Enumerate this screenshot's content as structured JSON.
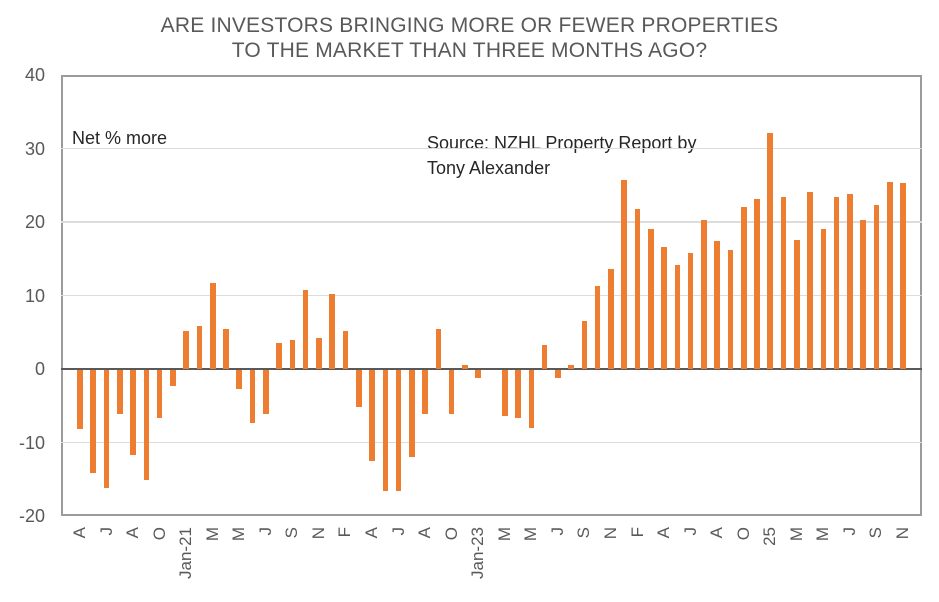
{
  "title": {
    "line1": "ARE INVESTORS BRINGING MORE OR FEWER PROPERTIES",
    "line2": "TO THE MARKET THAN THREE MONTHS AGO?"
  },
  "annotations": {
    "y_unit": "Net % more",
    "source_line1": "Source: NZHL Property Report by",
    "source_line2": "Tony Alexander"
  },
  "colors": {
    "bar": "#ED7D31",
    "grid": "#DCDCDC",
    "plot_border": "#9B9B9B",
    "zero_line": "#595959",
    "axis_text": "#595959",
    "title_text": "#595959",
    "annotation_text": "#262626"
  },
  "chart_data": {
    "type": "bar",
    "title": "ARE INVESTORS BRINGING MORE OR FEWER PROPERTIES TO THE MARKET THAN THREE MONTHS AGO?",
    "ylabel": "Net % more",
    "source": "Source: NZHL Property Report by Tony Alexander",
    "ylim": [
      -20,
      40
    ],
    "yticks": [
      40,
      30,
      20,
      10,
      0,
      -10,
      -20
    ],
    "gridline_values": [
      30,
      20,
      10,
      -10
    ],
    "grid": true,
    "legend": false,
    "x_tick_note": "monthly bars, tick label under every second bar",
    "tick_labels": [
      "A",
      "J",
      "A",
      "O",
      "Jan-21",
      "M",
      "M",
      "J",
      "S",
      "N",
      "F",
      "A",
      "J",
      "A",
      "O",
      "Jan-23",
      "M",
      "M",
      "J",
      "S",
      "N",
      "F",
      "A",
      "J",
      "A",
      "O",
      "25",
      "M",
      "M",
      "J",
      "S",
      "N"
    ],
    "bars": [
      {
        "tick": "A",
        "value": -8
      },
      {
        "tick": "",
        "value": -14
      },
      {
        "tick": "J",
        "value": -16
      },
      {
        "tick": "",
        "value": -5.9
      },
      {
        "tick": "A",
        "value": -11.5
      },
      {
        "tick": "",
        "value": -15
      },
      {
        "tick": "O",
        "value": -6.5
      },
      {
        "tick": "",
        "value": -2.2
      },
      {
        "tick": "Jan-21",
        "value": 5.2
      },
      {
        "tick": "",
        "value": 5.9
      },
      {
        "tick": "M",
        "value": 11.7
      },
      {
        "tick": "",
        "value": 5.4
      },
      {
        "tick": "M",
        "value": -2.6
      },
      {
        "tick": "",
        "value": -7.2
      },
      {
        "tick": "J",
        "value": -5.9
      },
      {
        "tick": "",
        "value": 3.5
      },
      {
        "tick": "S",
        "value": 4
      },
      {
        "tick": "",
        "value": 10.7
      },
      {
        "tick": "N",
        "value": 4.2
      },
      {
        "tick": "",
        "value": 10.2
      },
      {
        "tick": "F",
        "value": 5.2
      },
      {
        "tick": "",
        "value": -5
      },
      {
        "tick": "A",
        "value": -12.4
      },
      {
        "tick": "",
        "value": -16.4
      },
      {
        "tick": "J",
        "value": -16.5
      },
      {
        "tick": "",
        "value": -11.8
      },
      {
        "tick": "A",
        "value": -6
      },
      {
        "tick": "",
        "value": 5.4
      },
      {
        "tick": "O",
        "value": -6
      },
      {
        "tick": "",
        "value": 0.5
      },
      {
        "tick": "Jan-23",
        "value": -1
      },
      {
        "tick": "",
        "value": 0
      },
      {
        "tick": "M",
        "value": -6.2
      },
      {
        "tick": "",
        "value": -6.5
      },
      {
        "tick": "M",
        "value": -7.8
      },
      {
        "tick": "",
        "value": 3.3
      },
      {
        "tick": "J",
        "value": -1
      },
      {
        "tick": "",
        "value": 0.5
      },
      {
        "tick": "S",
        "value": 6.5
      },
      {
        "tick": "",
        "value": 11.3
      },
      {
        "tick": "N",
        "value": 13.6
      },
      {
        "tick": "",
        "value": 25.7
      },
      {
        "tick": "F",
        "value": 21.8
      },
      {
        "tick": "",
        "value": 19
      },
      {
        "tick": "A",
        "value": 16.6
      },
      {
        "tick": "",
        "value": 14.2
      },
      {
        "tick": "J",
        "value": 15.8
      },
      {
        "tick": "",
        "value": 20.3
      },
      {
        "tick": "A",
        "value": 17.4
      },
      {
        "tick": "",
        "value": 16.2
      },
      {
        "tick": "O",
        "value": 22.1
      },
      {
        "tick": "",
        "value": 23.1
      },
      {
        "tick": "25",
        "value": 32.1
      },
      {
        "tick": "",
        "value": 23.4
      },
      {
        "tick": "M",
        "value": 17.6
      },
      {
        "tick": "",
        "value": 24.1
      },
      {
        "tick": "M",
        "value": 19.1
      },
      {
        "tick": "",
        "value": 23.4
      },
      {
        "tick": "J",
        "value": 23.8
      },
      {
        "tick": "",
        "value": 20.3
      },
      {
        "tick": "S",
        "value": 22.3
      },
      {
        "tick": "",
        "value": 25.4
      },
      {
        "tick": "N",
        "value": 25.3
      }
    ]
  }
}
